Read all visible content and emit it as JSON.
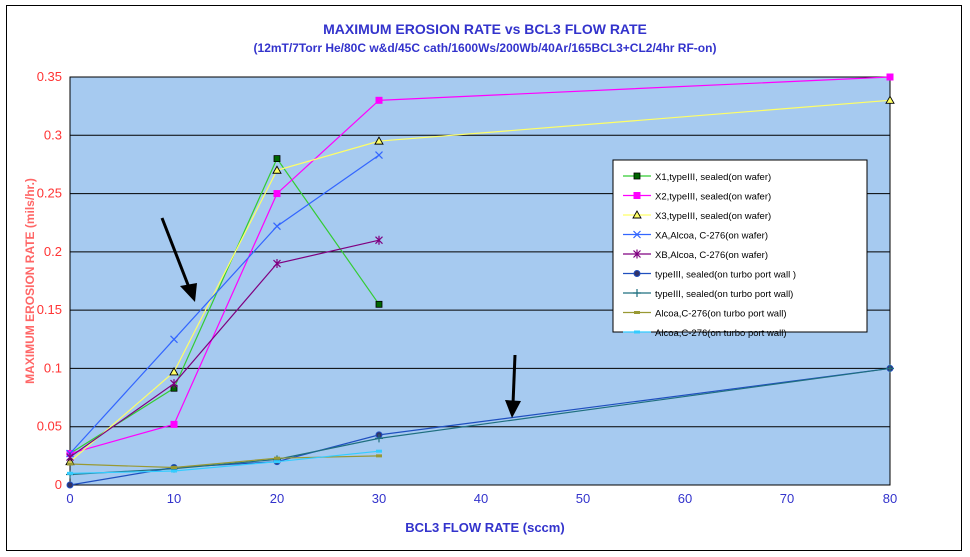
{
  "chart_data": {
    "type": "line",
    "title": "MAXIMUM EROSION RATE vs BCL3 FLOW RATE",
    "subtitle": "(12mT/7Torr He/80C w&d/45C cath/1600Ws/200Wb/40Ar/165BCL3+CL2/4hr RF-on)",
    "xlabel": "BCL3 FLOW RATE (sccm)",
    "ylabel": "MAXIMUM EROSION RATE (mils/hr.)",
    "x_categories": [
      "0",
      "10",
      "20",
      "30",
      "40",
      "50",
      "60",
      "70",
      "80"
    ],
    "ylim": [
      0,
      0.35
    ],
    "y_ticks": [
      "0",
      "0.05",
      "0.1",
      "0.15",
      "0.2",
      "0.25",
      "0.3",
      "0.35"
    ],
    "legend_position": "right",
    "plot_background": "#a6caf0",
    "series": [
      {
        "name": "X1,typeIII, sealed(on wafer)",
        "color": "#33cc33",
        "marker": "square-dark",
        "x": [
          0,
          10,
          20,
          30
        ],
        "y": [
          0.027,
          0.083,
          0.28,
          0.155
        ]
      },
      {
        "name": "X2,typeIII, sealed(on wafer)",
        "color": "#ff00ff",
        "marker": "square",
        "x": [
          0,
          10,
          20,
          30,
          80
        ],
        "y": [
          0.027,
          0.052,
          0.25,
          0.33,
          0.35
        ]
      },
      {
        "name": "X3,typeIII, sealed(on wafer)",
        "color": "#ffff66",
        "marker": "triangle",
        "x": [
          0,
          10,
          20,
          30,
          80
        ],
        "y": [
          0.02,
          0.097,
          0.27,
          0.295,
          0.33
        ]
      },
      {
        "name": "XA,Alcoa, C-276(on wafer)",
        "color": "#3366ff",
        "marker": "x",
        "x": [
          0,
          10,
          20,
          30
        ],
        "y": [
          0.027,
          0.125,
          0.222,
          0.283
        ]
      },
      {
        "name": "XB,Alcoa, C-276(on wafer)",
        "color": "#800080",
        "marker": "asterisk",
        "x": [
          0,
          10,
          20,
          30
        ],
        "y": [
          0.024,
          0.087,
          0.19,
          0.21
        ]
      },
      {
        "name": "typeIII, sealed(on turbo port wall )",
        "color": "#1f4fbf",
        "marker": "circle",
        "x": [
          0,
          10,
          20,
          30,
          80
        ],
        "y": [
          0,
          0.015,
          0.02,
          0.043,
          0.1
        ]
      },
      {
        "name": "typeIII, sealed(on turbo port wall)",
        "color": "#1f6f7f",
        "marker": "plus",
        "x": [
          0,
          10,
          20,
          30,
          80
        ],
        "y": [
          0.009,
          0.014,
          0.022,
          0.04,
          0.1
        ]
      },
      {
        "name": "Alcoa,C-276(on turbo port wall)",
        "color": "#999933",
        "marker": "dash",
        "x": [
          0,
          10,
          20,
          30
        ],
        "y": [
          0.018,
          0.015,
          0.023,
          0.025
        ]
      },
      {
        "name": "Alcoa,C-276(on turbo port wall)",
        "color": "#33ccff",
        "marker": "dash",
        "x": [
          0,
          10,
          20,
          30
        ],
        "y": [
          0.01,
          0.012,
          0.02,
          0.029
        ]
      }
    ]
  }
}
